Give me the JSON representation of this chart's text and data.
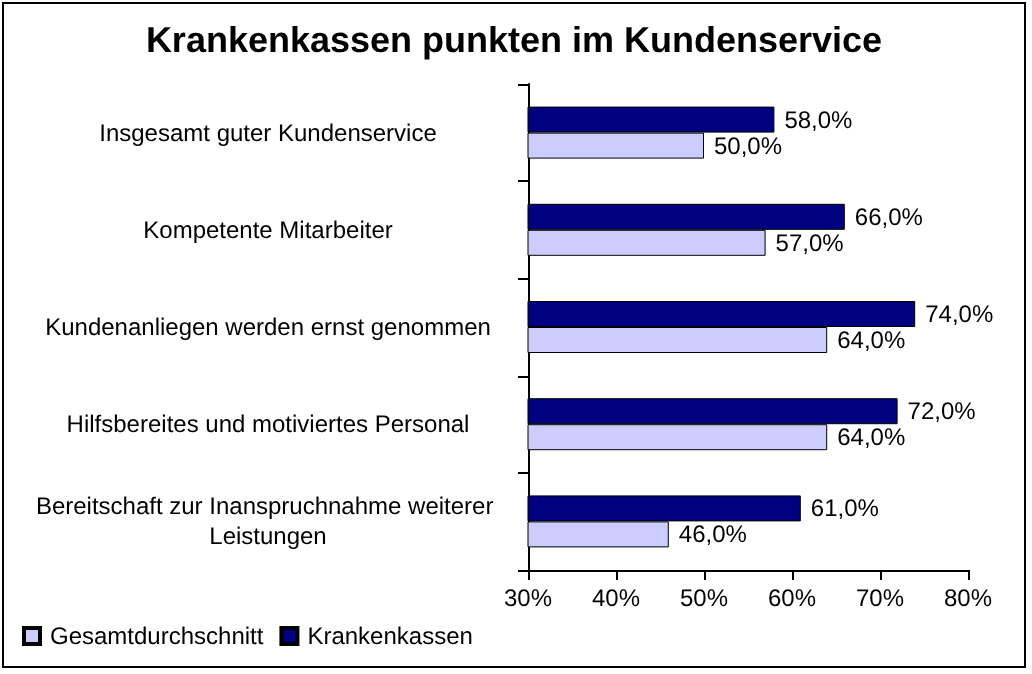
{
  "chart_data": {
    "type": "bar",
    "orientation": "horizontal",
    "title": "Krankenkassen punkten im Kundenservice",
    "categories": [
      "Insgesamt guter Kundenservice",
      "Kompetente Mitarbeiter",
      "Kundenanliegen werden ernst genommen",
      "Hilfsbereites und motiviertes Personal",
      "Bereitschaft zur Inanspruchnahme weiterer Leistungen"
    ],
    "series": [
      {
        "name": "Gesamtdurchschnitt",
        "color": "#ccccff",
        "values": [
          50,
          57,
          64,
          64,
          46
        ],
        "value_labels": [
          "50,0%",
          "57,0%",
          "64,0%",
          "64,0%",
          "46,0%"
        ]
      },
      {
        "name": "Krankenkassen",
        "color": "#000080",
        "values": [
          58,
          66,
          74,
          72,
          61
        ],
        "value_labels": [
          "58,0%",
          "66,0%",
          "74,0%",
          "72,0%",
          "61,0%"
        ]
      }
    ],
    "xlim": [
      30,
      80
    ],
    "xticks": [
      {
        "value": 30,
        "label": "30%"
      },
      {
        "value": 40,
        "label": "40%"
      },
      {
        "value": 50,
        "label": "50%"
      },
      {
        "value": 60,
        "label": "60%"
      },
      {
        "value": 70,
        "label": "70%"
      },
      {
        "value": 80,
        "label": "80%"
      }
    ],
    "grid": false,
    "legend": "bottom left"
  }
}
